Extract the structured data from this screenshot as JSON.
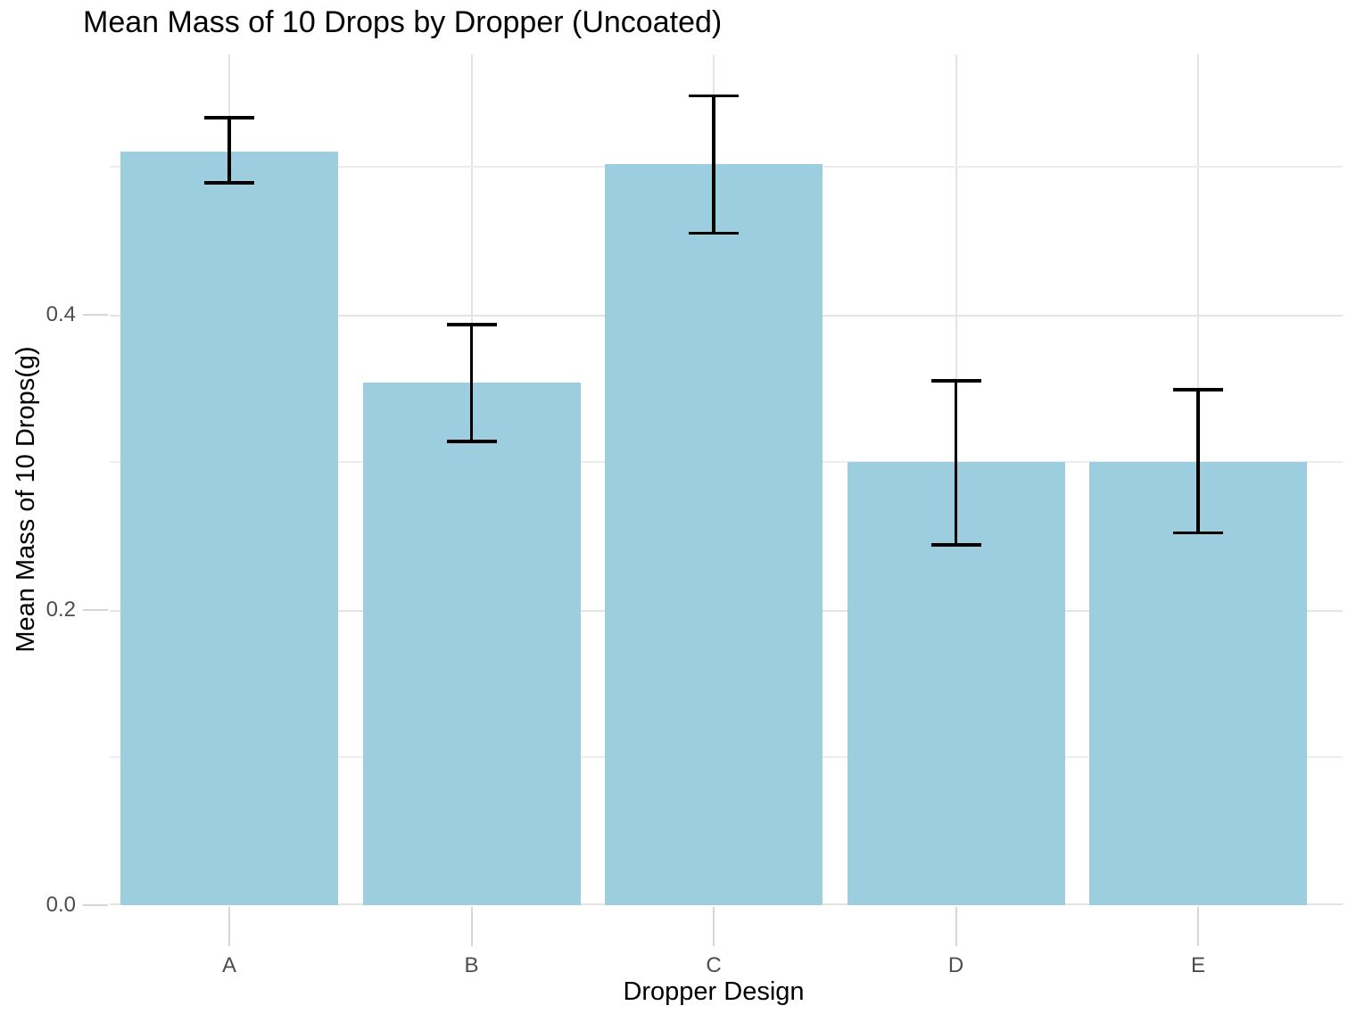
{
  "chart_data": {
    "type": "bar",
    "title": "Mean Mass of 10 Drops by Dropper (Uncoated)",
    "xlabel": "Dropper Design",
    "ylabel": "Mean Mass of 10 Drops(g)",
    "categories": [
      "A",
      "B",
      "C",
      "D",
      "E"
    ],
    "values": [
      0.51,
      0.354,
      0.502,
      0.3,
      0.3
    ],
    "error_bars": {
      "lower": [
        0.489,
        0.314,
        0.455,
        0.244,
        0.252
      ],
      "upper": [
        0.533,
        0.393,
        0.548,
        0.355,
        0.349
      ]
    },
    "ylim": [
      0,
      0.576
    ],
    "y_major_ticks": [
      0,
      0.2,
      0.4
    ],
    "y_tick_labels": [
      "0.0",
      "0.2",
      "0.4"
    ],
    "y_minor_gridlines": [
      0.1,
      0.3,
      0.5
    ],
    "grid": true,
    "legend": "none",
    "colors": {
      "bar_fill": "#9DCEE0",
      "error_bar": "#000000",
      "grid_major": "#E4E4E4",
      "grid_minor": "#EDEDED",
      "tick_mark": "#D6D6D6",
      "tick_label": "#4D4D4D",
      "text": "#000000",
      "background": "#FFFFFF"
    }
  }
}
